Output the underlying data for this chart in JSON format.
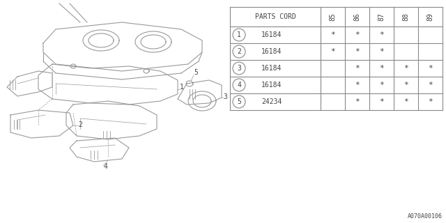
{
  "bg_color": "#ffffff",
  "table": {
    "header_label": "PARTS CORD",
    "year_cols": [
      "85",
      "86",
      "87",
      "88",
      "89"
    ],
    "rows": [
      {
        "num": "1",
        "part": "16184",
        "marks": [
          1,
          1,
          1,
          0,
          0
        ]
      },
      {
        "num": "2",
        "part": "16184",
        "marks": [
          1,
          1,
          1,
          0,
          0
        ]
      },
      {
        "num": "3",
        "part": "16184",
        "marks": [
          0,
          1,
          1,
          1,
          1
        ]
      },
      {
        "num": "4",
        "part": "16184",
        "marks": [
          0,
          1,
          1,
          1,
          1
        ]
      },
      {
        "num": "5",
        "part": "24234",
        "marks": [
          0,
          1,
          1,
          1,
          1
        ]
      }
    ]
  },
  "diagram_label": "A070A00106",
  "line_color": "#888888",
  "text_color": "#444444",
  "font_size": 7
}
